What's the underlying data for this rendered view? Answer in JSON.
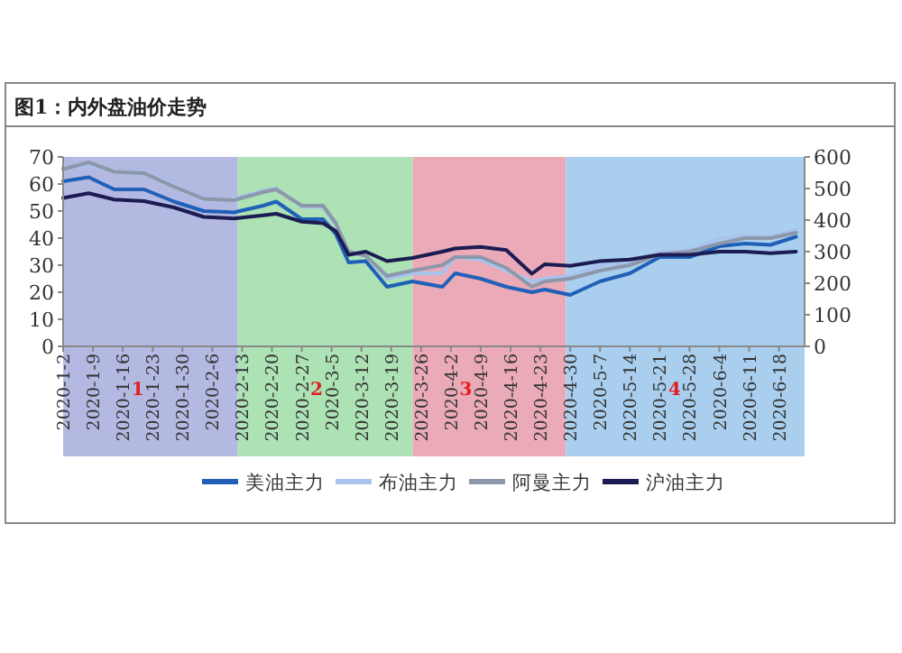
{
  "chart_data": {
    "type": "line",
    "title": "图1：内外盘油价走势",
    "x": [
      "2020-01-02",
      "2020-01-08",
      "2020-01-14",
      "2020-01-21",
      "2020-01-28",
      "2020-02-04",
      "2020-02-11",
      "2020-02-18",
      "2020-02-21",
      "2020-02-27",
      "2020-03-03",
      "2020-03-06",
      "2020-03-09",
      "2020-03-13",
      "2020-03-18",
      "2020-03-24",
      "2020-03-31",
      "2020-04-03",
      "2020-04-09",
      "2020-04-15",
      "2020-04-21",
      "2020-04-24",
      "2020-04-30",
      "2020-05-07",
      "2020-05-14",
      "2020-05-21",
      "2020-05-28",
      "2020-06-04",
      "2020-06-10",
      "2020-06-16",
      "2020-06-22"
    ],
    "series": [
      {
        "name": "美油主力",
        "color": "#2060b8",
        "values": [
          61,
          62.5,
          58,
          58,
          53.5,
          50,
          49.5,
          52,
          53.5,
          47,
          47,
          41.5,
          31,
          31.5,
          22,
          24,
          22,
          27,
          25,
          22,
          20,
          21,
          19,
          24,
          27,
          33,
          33,
          37,
          38,
          37.5,
          40.5
        ]
      },
      {
        "name": "布油主力",
        "color": "#a8c4ec",
        "values": [
          66,
          67,
          64.5,
          64.5,
          59.5,
          54,
          54.5,
          57.5,
          58.5,
          51.5,
          51.5,
          45,
          34.5,
          33.5,
          25,
          27,
          27,
          33,
          32,
          28,
          24,
          25,
          26,
          30,
          31,
          35,
          35.5,
          40,
          41,
          40.5,
          43
        ]
      },
      {
        "name": "阿曼主力",
        "color": "#8c98aa",
        "values": [
          65.5,
          68,
          64.5,
          64,
          59,
          54.5,
          54,
          57,
          58,
          52,
          52,
          45.5,
          35,
          33.5,
          26,
          28,
          30,
          33,
          33,
          29,
          22,
          24,
          25,
          28,
          30,
          34,
          35,
          38,
          40,
          40,
          42
        ]
      },
      {
        "name": "沪油主力",
        "color": "#1c1c52",
        "axis": "y2",
        "values": [
          470,
          485,
          465,
          460,
          440,
          410,
          405,
          415,
          420,
          395,
          390,
          365,
          290,
          300,
          270,
          280,
          300,
          310,
          315,
          305,
          230,
          260,
          255,
          270,
          275,
          290,
          290,
          300,
          300,
          295,
          300
        ]
      }
    ],
    "xlim": [
      "2020-01-02",
      "2020-06-24"
    ],
    "xticks": [
      {
        "value": "2020-01-02",
        "label": "2020-1-2"
      },
      {
        "value": "2020-01-09",
        "label": "2020-1-9"
      },
      {
        "value": "2020-01-16",
        "label": "2020-1-16"
      },
      {
        "value": "2020-01-23",
        "label": "2020-1-23"
      },
      {
        "value": "2020-01-30",
        "label": "2020-1-30"
      },
      {
        "value": "2020-02-06",
        "label": "2020-2-6"
      },
      {
        "value": "2020-02-13",
        "label": "2020-2-13"
      },
      {
        "value": "2020-02-20",
        "label": "2020-2-20"
      },
      {
        "value": "2020-02-27",
        "label": "2020-2-27"
      },
      {
        "value": "2020-03-05",
        "label": "2020-3-5"
      },
      {
        "value": "2020-03-12",
        "label": "2020-3-12"
      },
      {
        "value": "2020-03-19",
        "label": "2020-3-19"
      },
      {
        "value": "2020-03-26",
        "label": "2020-3-26"
      },
      {
        "value": "2020-04-02",
        "label": "2020-4-2"
      },
      {
        "value": "2020-04-09",
        "label": "2020-4-9"
      },
      {
        "value": "2020-04-16",
        "label": "2020-4-16"
      },
      {
        "value": "2020-04-23",
        "label": "2020-4-23"
      },
      {
        "value": "2020-04-30",
        "label": "2020-4-30"
      },
      {
        "value": "2020-05-07",
        "label": "2020-5-7"
      },
      {
        "value": "2020-05-14",
        "label": "2020-5-14"
      },
      {
        "value": "2020-05-21",
        "label": "2020-5-21"
      },
      {
        "value": "2020-05-28",
        "label": "2020-5-28"
      },
      {
        "value": "2020-06-04",
        "label": "2020-6-4"
      },
      {
        "value": "2020-06-11",
        "label": "2020-6-11"
      },
      {
        "value": "2020-06-18",
        "label": "2020-6-18"
      }
    ],
    "ylim": [
      0,
      70
    ],
    "yticks": [
      0,
      10,
      20,
      30,
      40,
      50,
      60,
      70
    ],
    "y2lim": [
      0,
      600
    ],
    "y2ticks": [
      0,
      100,
      200,
      300,
      400,
      500,
      600
    ],
    "bands": [
      {
        "axis": "x",
        "from": "2020-01-02",
        "to": "2020-02-12",
        "label": "1",
        "color": "#b4b9e2"
      },
      {
        "axis": "x",
        "from": "2020-02-12",
        "to": "2020-03-24",
        "label": "2",
        "color": "#ace2b4"
      },
      {
        "axis": "x",
        "from": "2020-03-24",
        "to": "2020-04-29",
        "label": "3",
        "color": "#eaaab8"
      },
      {
        "axis": "x",
        "from": "2020-04-29",
        "to": "2020-06-24",
        "label": "4",
        "color": "#aacfee"
      }
    ],
    "legend": "bottom",
    "grid": false,
    "marker": "none",
    "line_style": "solid"
  }
}
